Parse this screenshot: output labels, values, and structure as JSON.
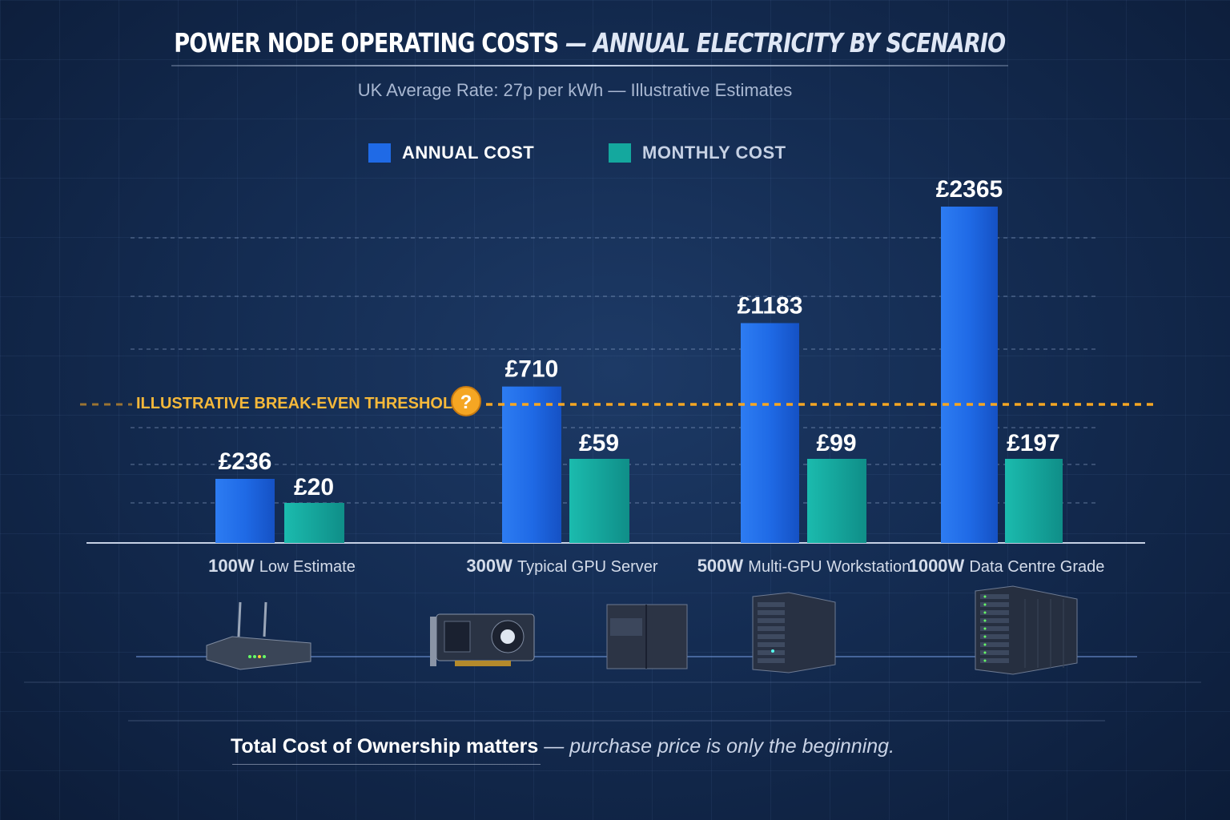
{
  "chart_data": {
    "type": "bar",
    "title_bold": "POWER NODE OPERATING COSTS",
    "title_light": "— ANNUAL ELECTRICITY BY SCENARIO",
    "subtitle": "UK Average Rate: 27p per kWh — Illustrative Estimates",
    "categories": [
      {
        "watt": "100W",
        "desc": "Low Estimate"
      },
      {
        "watt": "300W",
        "desc": "Typical GPU Server"
      },
      {
        "watt": "500W",
        "desc": "Multi-GPU Workstation"
      },
      {
        "watt": "1000W",
        "desc": "Data Centre Grade"
      }
    ],
    "series": [
      {
        "name": "ANNUAL COST",
        "color": "#1f6ae6",
        "values": [
          236,
          710,
          1183,
          2365
        ],
        "labels": [
          "£236",
          "£710",
          "£1183",
          "£2365"
        ]
      },
      {
        "name": "MONTHLY COST",
        "color": "#14a89e",
        "values": [
          20,
          59,
          99,
          197
        ],
        "labels": [
          "£20",
          "£59",
          "£99",
          "£197"
        ]
      }
    ],
    "threshold": {
      "label": "ILLUSTRATIVE BREAK-EVEN THRESHOLD",
      "color": "#f5a623",
      "icon": "question-icon"
    },
    "legend_placement": "top",
    "grid": true,
    "icons": [
      "router-icon",
      "gpu-card-icon",
      "tower-server-icon",
      "rack-server-icon",
      "server-cabinet-icon"
    ]
  },
  "footer": {
    "bold": "Total Cost of Ownership matters",
    "italic": " — purchase price is only the beginning."
  }
}
